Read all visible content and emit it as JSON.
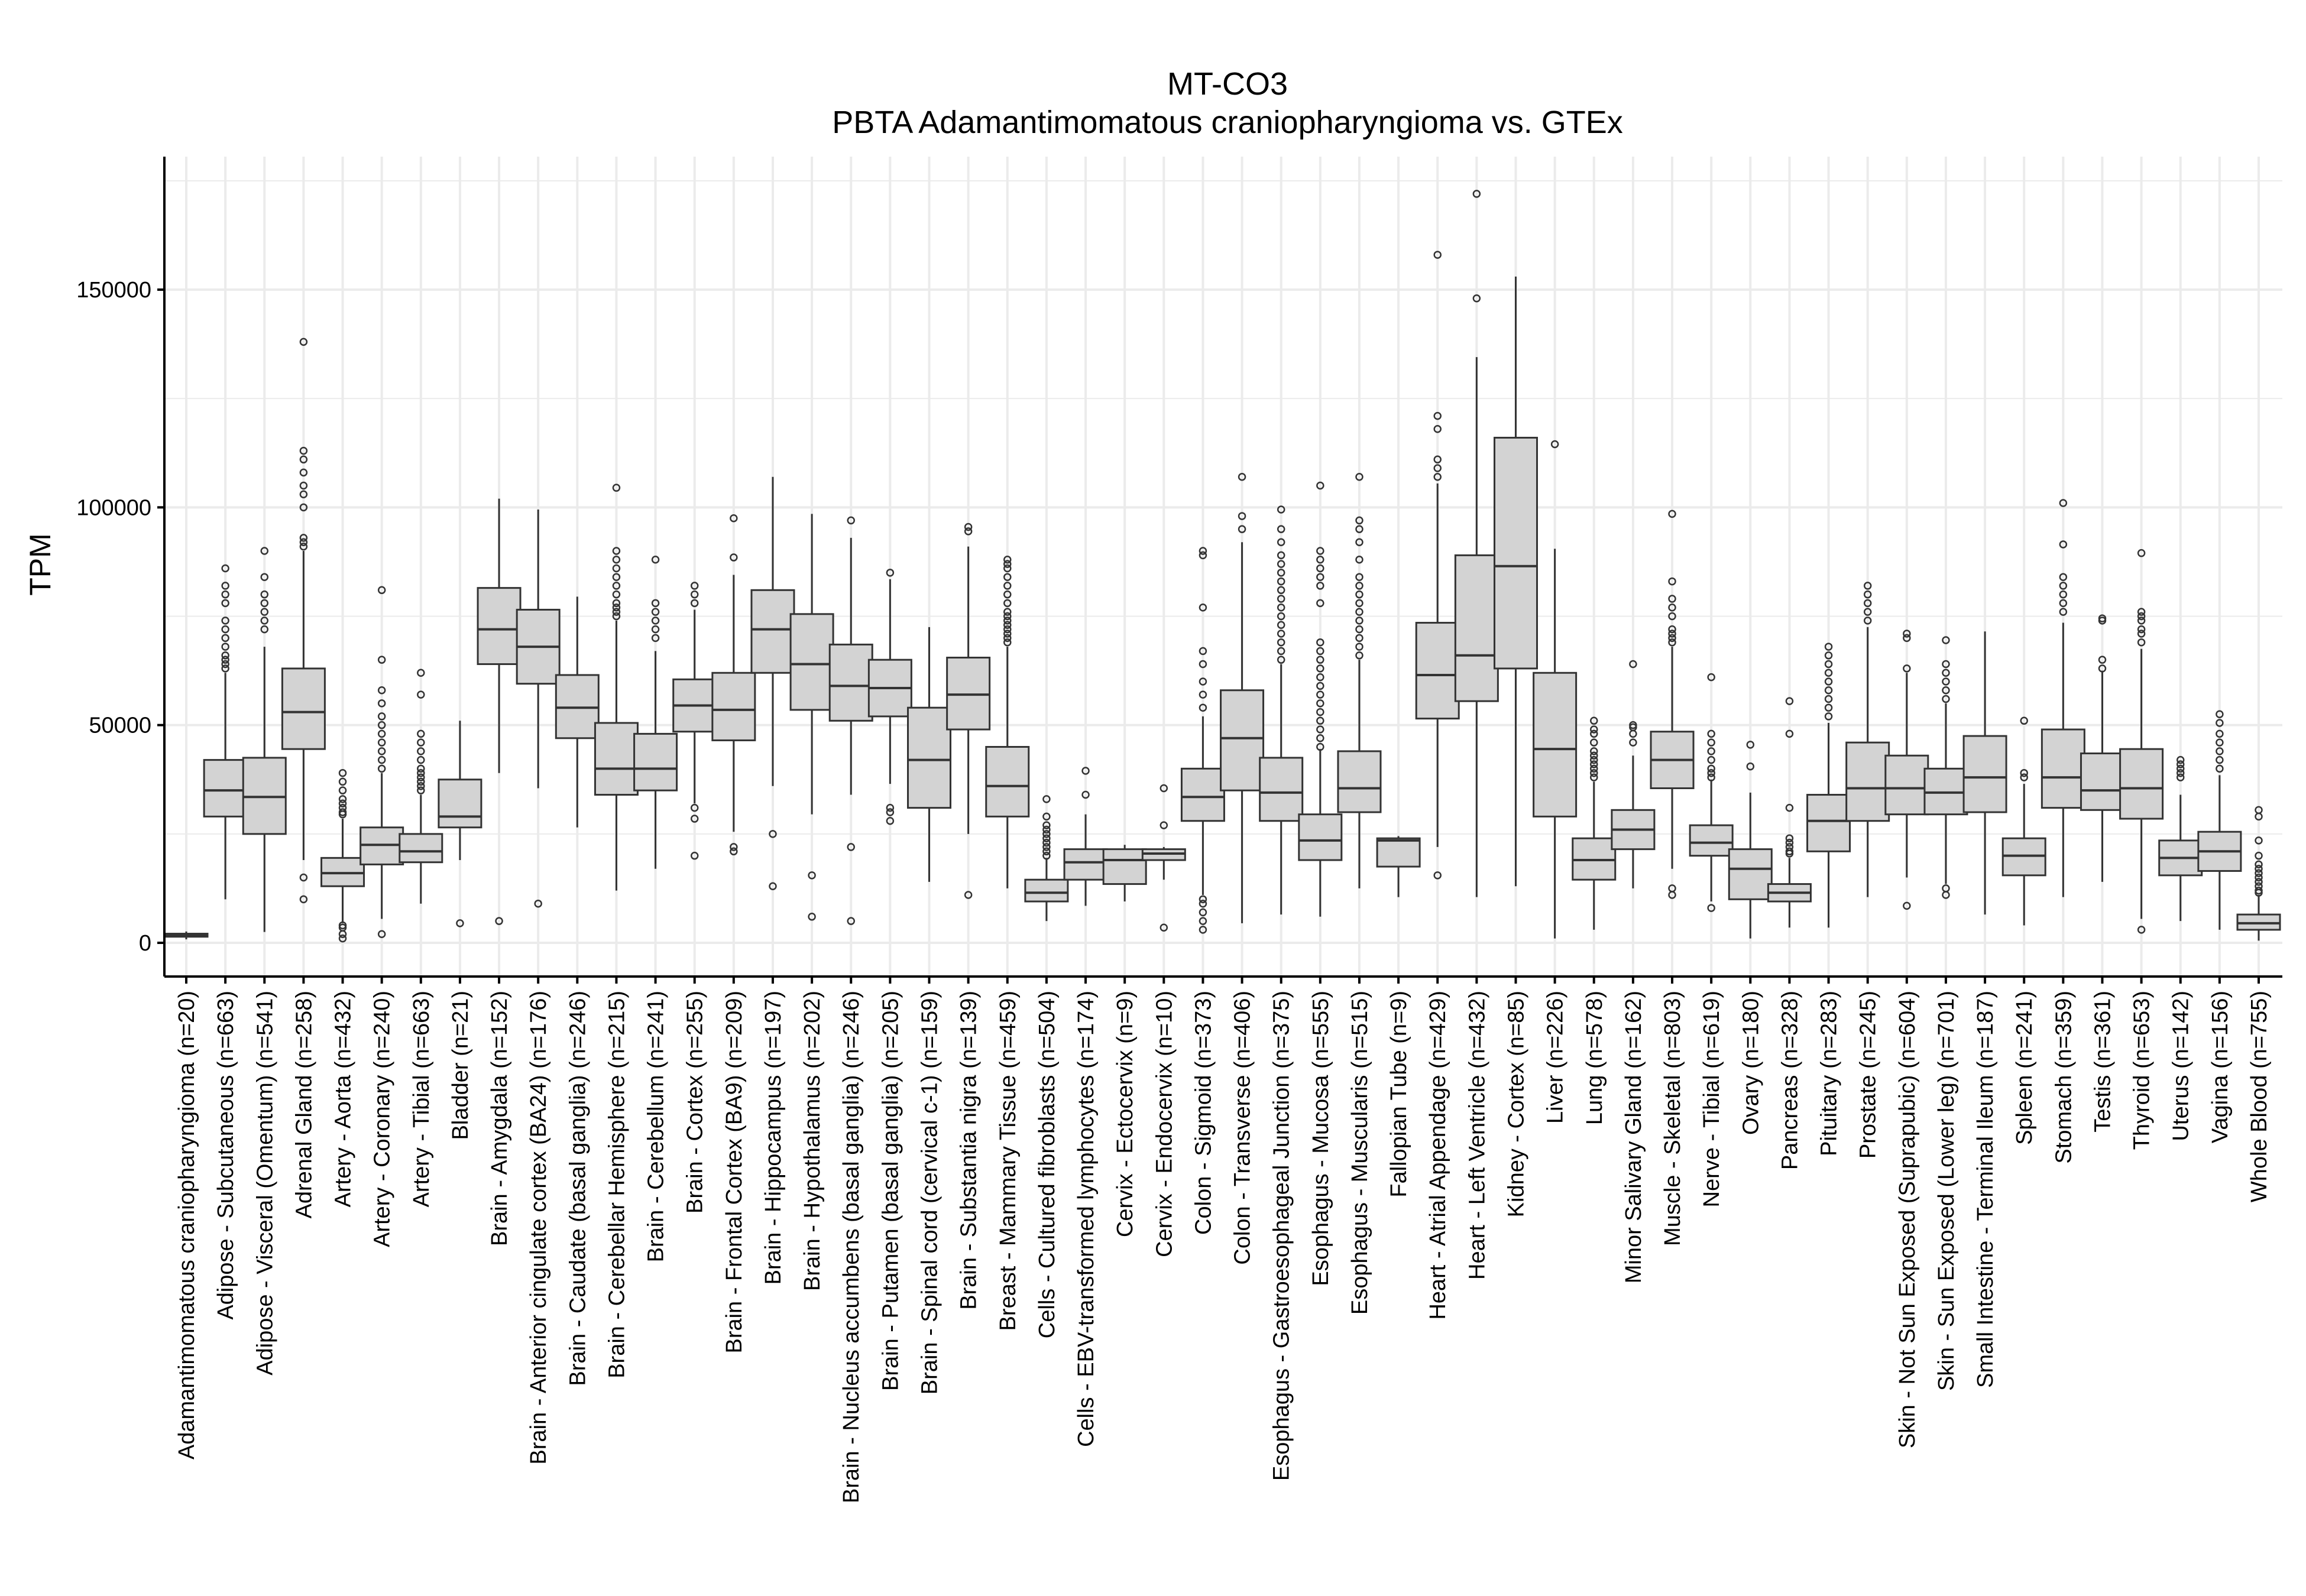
{
  "chart_data": {
    "type": "boxplot",
    "title": "MT-CO3",
    "subtitle": "PBTA Adamantimomatous craniopharyngioma vs. GTEx",
    "xlabel": "",
    "ylabel": "TPM",
    "ylim": [
      -8000,
      181000
    ],
    "yticks": [
      0,
      50000,
      100000,
      150000
    ],
    "ytick_labels": [
      "0",
      "50000",
      "100000",
      "150000"
    ],
    "grid": true,
    "legend": "none",
    "colors": {
      "box_fill": "#d3d3d3",
      "box_line": "#333333",
      "grid": "#ebebeb",
      "axis": "#000000"
    },
    "categories": [
      "Adamantimomatous craniopharyngioma (n=20)",
      "Adipose - Subcutaneous (n=663)",
      "Adipose - Visceral (Omentum) (n=541)",
      "Adrenal Gland (n=258)",
      "Artery - Aorta (n=432)",
      "Artery - Coronary (n=240)",
      "Artery - Tibial (n=663)",
      "Bladder (n=21)",
      "Brain - Amygdala (n=152)",
      "Brain - Anterior cingulate cortex (BA24) (n=176)",
      "Brain - Caudate (basal ganglia) (n=246)",
      "Brain - Cerebellar Hemisphere (n=215)",
      "Brain - Cerebellum (n=241)",
      "Brain - Cortex (n=255)",
      "Brain - Frontal Cortex (BA9) (n=209)",
      "Brain - Hippocampus (n=197)",
      "Brain - Hypothalamus (n=202)",
      "Brain - Nucleus accumbens (basal ganglia) (n=246)",
      "Brain - Putamen (basal ganglia) (n=205)",
      "Brain - Spinal cord (cervical c-1) (n=159)",
      "Brain - Substantia nigra (n=139)",
      "Breast - Mammary Tissue (n=459)",
      "Cells - Cultured fibroblasts (n=504)",
      "Cells - EBV-transformed lymphocytes (n=174)",
      "Cervix - Ectocervix (n=9)",
      "Cervix - Endocervix (n=10)",
      "Colon - Sigmoid (n=373)",
      "Colon - Transverse (n=406)",
      "Esophagus - Gastroesophageal Junction (n=375)",
      "Esophagus - Mucosa (n=555)",
      "Esophagus - Muscularis (n=515)",
      "Fallopian Tube (n=9)",
      "Heart - Atrial Appendage (n=429)",
      "Heart - Left Ventricle (n=432)",
      "Kidney - Cortex (n=85)",
      "Liver (n=226)",
      "Lung (n=578)",
      "Minor Salivary Gland (n=162)",
      "Muscle - Skeletal (n=803)",
      "Nerve - Tibial (n=619)",
      "Ovary (n=180)",
      "Pancreas (n=328)",
      "Pituitary (n=283)",
      "Prostate (n=245)",
      "Skin - Not Sun Exposed (Suprapubic) (n=604)",
      "Skin - Sun Exposed (Lower leg) (n=701)",
      "Small Intestine - Terminal Ileum (n=187)",
      "Spleen (n=241)",
      "Stomach (n=359)",
      "Testis (n=361)",
      "Thyroid (n=653)",
      "Uterus (n=142)",
      "Vagina (n=156)",
      "Whole Blood (n=755)"
    ],
    "boxes": [
      {
        "low": 800,
        "q1": 1400,
        "median": 1700,
        "q3": 2100,
        "high": 2600,
        "outliers": []
      },
      {
        "low": 10000,
        "q1": 29000,
        "median": 35000,
        "q3": 42000,
        "high": 62000,
        "outliers": [
          63000,
          64000,
          65000,
          66000,
          68000,
          70000,
          72000,
          74000,
          78000,
          80000,
          82000,
          86000
        ]
      },
      {
        "low": 2500,
        "q1": 25000,
        "median": 33500,
        "q3": 42500,
        "high": 68000,
        "outliers": [
          72000,
          74000,
          76000,
          78000,
          80000,
          84000,
          90000
        ]
      },
      {
        "low": 19000,
        "q1": 44500,
        "median": 53000,
        "q3": 63000,
        "high": 90000,
        "outliers": [
          10000,
          15000,
          91000,
          92000,
          93000,
          100000,
          103000,
          105000,
          108000,
          111000,
          113000,
          138000
        ]
      },
      {
        "low": 4500,
        "q1": 13000,
        "median": 16000,
        "q3": 19500,
        "high": 28500,
        "outliers": [
          1000,
          2000,
          3500,
          4000,
          29500,
          30000,
          31000,
          32000,
          33000,
          35000,
          37000,
          39000
        ]
      },
      {
        "low": 5500,
        "q1": 18000,
        "median": 22500,
        "q3": 26500,
        "high": 39000,
        "outliers": [
          2000,
          40000,
          42000,
          44000,
          46000,
          48000,
          50000,
          52000,
          55000,
          58000,
          65000,
          81000
        ]
      },
      {
        "low": 9000,
        "q1": 18500,
        "median": 21000,
        "q3": 25000,
        "high": 34000,
        "outliers": [
          35000,
          36000,
          37000,
          38000,
          39000,
          40000,
          42000,
          44000,
          46000,
          48000,
          57000,
          62000
        ]
      },
      {
        "low": 19000,
        "q1": 26500,
        "median": 29000,
        "q3": 37500,
        "high": 51000,
        "outliers": [
          4500
        ]
      },
      {
        "low": 39000,
        "q1": 64000,
        "median": 72000,
        "q3": 81500,
        "high": 102000,
        "outliers": [
          5000
        ]
      },
      {
        "low": 35500,
        "q1": 59500,
        "median": 68000,
        "q3": 76500,
        "high": 99500,
        "outliers": [
          9000
        ]
      },
      {
        "low": 26500,
        "q1": 47000,
        "median": 54000,
        "q3": 61500,
        "high": 79500,
        "outliers": []
      },
      {
        "low": 12000,
        "q1": 34000,
        "median": 40000,
        "q3": 50500,
        "high": 74000,
        "outliers": [
          75000,
          76000,
          77000,
          78000,
          80000,
          82000,
          84000,
          86000,
          88000,
          90000,
          104500
        ]
      },
      {
        "low": 17000,
        "q1": 35000,
        "median": 40000,
        "q3": 48000,
        "high": 67000,
        "outliers": [
          70000,
          72000,
          74000,
          76000,
          78000,
          88000
        ]
      },
      {
        "low": 32000,
        "q1": 48500,
        "median": 54500,
        "q3": 60500,
        "high": 76500,
        "outliers": [
          20000,
          28500,
          31000,
          78000,
          80000,
          82000
        ]
      },
      {
        "low": 25500,
        "q1": 46500,
        "median": 53500,
        "q3": 62000,
        "high": 84500,
        "outliers": [
          21000,
          22000,
          88500,
          97500
        ]
      },
      {
        "low": 36000,
        "q1": 62000,
        "median": 72000,
        "q3": 81000,
        "high": 107000,
        "outliers": [
          13000,
          25000
        ]
      },
      {
        "low": 29500,
        "q1": 53500,
        "median": 64000,
        "q3": 75500,
        "high": 98500,
        "outliers": [
          6000,
          15500
        ]
      },
      {
        "low": 34000,
        "q1": 51000,
        "median": 59000,
        "q3": 68500,
        "high": 93000,
        "outliers": [
          5000,
          22000,
          97000
        ]
      },
      {
        "low": 36500,
        "q1": 52000,
        "median": 58500,
        "q3": 65000,
        "high": 83500,
        "outliers": [
          28000,
          30000,
          31000,
          85000
        ]
      },
      {
        "low": 14000,
        "q1": 31000,
        "median": 42000,
        "q3": 54000,
        "high": 72500,
        "outliers": []
      },
      {
        "low": 25000,
        "q1": 49000,
        "median": 57000,
        "q3": 65500,
        "high": 91000,
        "outliers": [
          11000,
          94500,
          95500
        ]
      },
      {
        "low": 12500,
        "q1": 29000,
        "median": 36000,
        "q3": 45000,
        "high": 68000,
        "outliers": [
          69000,
          70000,
          71000,
          72000,
          73000,
          74000,
          75000,
          76000,
          78000,
          80000,
          82000,
          84000,
          86000,
          87000,
          88000
        ]
      },
      {
        "low": 5000,
        "q1": 9500,
        "median": 11500,
        "q3": 14500,
        "high": 19500,
        "outliers": [
          20000,
          21000,
          22000,
          23000,
          24000,
          25000,
          26000,
          27000,
          29000,
          33000
        ]
      },
      {
        "low": 8500,
        "q1": 14500,
        "median": 18500,
        "q3": 21500,
        "high": 29500,
        "outliers": [
          34000,
          39500
        ]
      },
      {
        "low": 9500,
        "q1": 13500,
        "median": 19000,
        "q3": 21500,
        "high": 22500,
        "outliers": []
      },
      {
        "low": 14500,
        "q1": 19000,
        "median": 20500,
        "q3": 21500,
        "high": 22000,
        "outliers": [
          3500,
          27000,
          35500
        ]
      },
      {
        "low": 11000,
        "q1": 28000,
        "median": 33500,
        "q3": 40000,
        "high": 52000,
        "outliers": [
          3000,
          5000,
          7000,
          9000,
          10000,
          54000,
          57000,
          60000,
          64000,
          67000,
          77000,
          89000,
          90000
        ]
      },
      {
        "low": 4500,
        "q1": 35000,
        "median": 47000,
        "q3": 58000,
        "high": 92000,
        "outliers": [
          95000,
          98000,
          107000
        ]
      },
      {
        "low": 6500,
        "q1": 28000,
        "median": 34500,
        "q3": 42500,
        "high": 64000,
        "outliers": [
          65000,
          67000,
          69000,
          71000,
          73000,
          75000,
          77000,
          79000,
          81000,
          83000,
          85000,
          87000,
          89000,
          92000,
          95000,
          99500
        ]
      },
      {
        "low": 6000,
        "q1": 19000,
        "median": 23500,
        "q3": 29500,
        "high": 44500,
        "outliers": [
          45000,
          47000,
          49000,
          51000,
          53000,
          55000,
          57000,
          59000,
          61000,
          63000,
          65000,
          67000,
          69000,
          78000,
          82000,
          84000,
          86000,
          88000,
          90000,
          105000
        ]
      },
      {
        "low": 12500,
        "q1": 30000,
        "median": 35500,
        "q3": 44000,
        "high": 65000,
        "outliers": [
          66000,
          68000,
          70000,
          72000,
          74000,
          76000,
          78000,
          80000,
          82000,
          84000,
          88000,
          92000,
          95000,
          97000,
          107000
        ]
      },
      {
        "low": 10500,
        "q1": 17500,
        "median": 23500,
        "q3": 24000,
        "high": 24500,
        "outliers": []
      },
      {
        "low": 22000,
        "q1": 51500,
        "median": 61500,
        "q3": 73500,
        "high": 105500,
        "outliers": [
          15500,
          107000,
          109000,
          111000,
          118000,
          121000,
          158000
        ]
      },
      {
        "low": 10500,
        "q1": 55500,
        "median": 66000,
        "q3": 89000,
        "high": 134500,
        "outliers": [
          148000,
          172000
        ]
      },
      {
        "low": 13000,
        "q1": 63000,
        "median": 86500,
        "q3": 116000,
        "high": 153000,
        "outliers": []
      },
      {
        "low": 1000,
        "q1": 29000,
        "median": 44500,
        "q3": 62000,
        "high": 90500,
        "outliers": [
          114500
        ]
      },
      {
        "low": 3000,
        "q1": 14500,
        "median": 19000,
        "q3": 24000,
        "high": 37000,
        "outliers": [
          38000,
          39000,
          40000,
          41000,
          42000,
          43000,
          44000,
          46000,
          48000,
          49000,
          51000
        ]
      },
      {
        "low": 12500,
        "q1": 21500,
        "median": 26000,
        "q3": 30500,
        "high": 43000,
        "outliers": [
          46000,
          48000,
          49500,
          50000,
          64000
        ]
      },
      {
        "low": 17000,
        "q1": 35500,
        "median": 42000,
        "q3": 48500,
        "high": 68000,
        "outliers": [
          11000,
          12500,
          69000,
          70000,
          71000,
          72000,
          75000,
          77000,
          79000,
          83000,
          98500
        ]
      },
      {
        "low": 9500,
        "q1": 20000,
        "median": 23000,
        "q3": 27000,
        "high": 37500,
        "outliers": [
          8000,
          38000,
          39000,
          40000,
          42000,
          44000,
          46000,
          48000,
          61000
        ]
      },
      {
        "low": 1000,
        "q1": 10000,
        "median": 17000,
        "q3": 21500,
        "high": 34500,
        "outliers": [
          40500,
          45500
        ]
      },
      {
        "low": 3500,
        "q1": 9500,
        "median": 11500,
        "q3": 13500,
        "high": 19500,
        "outliers": [
          20500,
          21000,
          22000,
          23000,
          24000,
          31000,
          48000,
          55500
        ]
      },
      {
        "low": 3500,
        "q1": 21000,
        "median": 28000,
        "q3": 34000,
        "high": 50500,
        "outliers": [
          52000,
          54000,
          56000,
          58000,
          60000,
          62000,
          64000,
          66000,
          68000
        ]
      },
      {
        "low": 10500,
        "q1": 28000,
        "median": 35500,
        "q3": 46000,
        "high": 72500,
        "outliers": [
          74000,
          76000,
          78000,
          80000,
          82000
        ]
      },
      {
        "low": 15000,
        "q1": 29500,
        "median": 35500,
        "q3": 43000,
        "high": 62000,
        "outliers": [
          8500,
          63000,
          70000,
          71000
        ]
      },
      {
        "low": 13500,
        "q1": 29500,
        "median": 34500,
        "q3": 40000,
        "high": 55000,
        "outliers": [
          11000,
          12500,
          56000,
          58000,
          60000,
          62000,
          64000,
          69500
        ]
      },
      {
        "low": 6500,
        "q1": 30000,
        "median": 38000,
        "q3": 47500,
        "high": 71500,
        "outliers": []
      },
      {
        "low": 4000,
        "q1": 15500,
        "median": 20000,
        "q3": 24000,
        "high": 36500,
        "outliers": [
          38000,
          39000,
          51000
        ]
      },
      {
        "low": 10500,
        "q1": 31000,
        "median": 38000,
        "q3": 49000,
        "high": 73500,
        "outliers": [
          76000,
          78000,
          80000,
          82000,
          84000,
          91500,
          101000
        ]
      },
      {
        "low": 14000,
        "q1": 30500,
        "median": 35000,
        "q3": 43500,
        "high": 62500,
        "outliers": [
          63000,
          65000,
          74000,
          74500
        ]
      },
      {
        "low": 5500,
        "q1": 28500,
        "median": 35500,
        "q3": 44500,
        "high": 67500,
        "outliers": [
          3000,
          69000,
          71000,
          72000,
          74000,
          75000,
          76000,
          89500
        ]
      },
      {
        "low": 5000,
        "q1": 15500,
        "median": 19500,
        "q3": 23500,
        "high": 34000,
        "outliers": [
          38000,
          39000,
          40000,
          41000,
          42000
        ]
      },
      {
        "low": 3000,
        "q1": 16500,
        "median": 21000,
        "q3": 25500,
        "high": 38500,
        "outliers": [
          40000,
          42000,
          44000,
          46000,
          48000,
          50500,
          52500
        ]
      },
      {
        "low": 500,
        "q1": 3000,
        "median": 4500,
        "q3": 6500,
        "high": 11000,
        "outliers": [
          11500,
          12000,
          13000,
          14000,
          15000,
          16000,
          17000,
          18000,
          20000,
          23500,
          29000,
          30500
        ]
      }
    ]
  }
}
